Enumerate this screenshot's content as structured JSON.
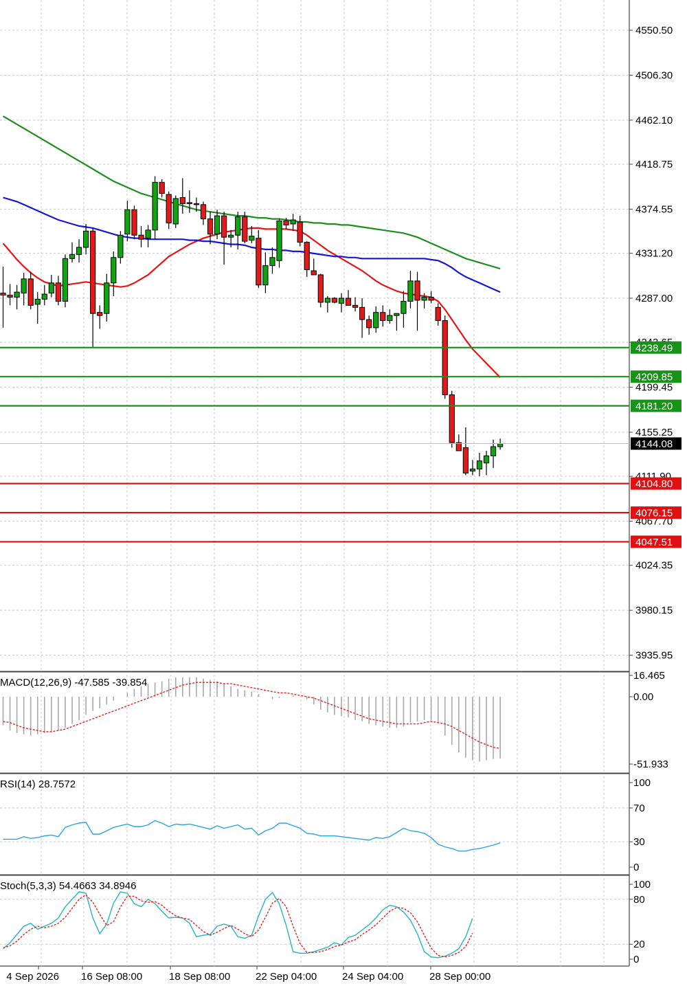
{
  "chart_data": {
    "type": "candlestick",
    "x_tick_labels": [
      "4 Sep 2026",
      "16 Sep 08:00",
      "18 Sep 08:00",
      "22 Sep 04:00",
      "24 Sep 04:00",
      "28 Sep 00:00"
    ],
    "price_panel": {
      "ylim": [
        3914,
        4574
      ],
      "y_tick_labels": [
        "4550.50",
        "4506.30",
        "4462.10",
        "4418.75",
        "4374.55",
        "4331.20",
        "4287.00",
        "4243.65",
        "4199.45",
        "4155.25",
        "4111.90",
        "4067.70",
        "4024.35",
        "3980.15",
        "3935.95"
      ],
      "current_price": 4144.08,
      "current_price_label": "4144.08",
      "resistance_levels": [
        {
          "value": 4238.49,
          "label": "4238.49"
        },
        {
          "value": 4209.85,
          "label": "4209.85"
        },
        {
          "value": 4181.2,
          "label": "4181.20"
        }
      ],
      "support_levels": [
        {
          "value": 4104.8,
          "label": "4104.80"
        },
        {
          "value": 4076.15,
          "label": "4076.15"
        },
        {
          "value": 4047.51,
          "label": "4047.51"
        }
      ],
      "candles": [
        {
          "o": 4292,
          "h": 4318,
          "l": 4258,
          "c": 4290
        },
        {
          "o": 4290,
          "h": 4301,
          "l": 4280,
          "c": 4288
        },
        {
          "o": 4288,
          "h": 4300,
          "l": 4276,
          "c": 4293
        },
        {
          "o": 4292,
          "h": 4312,
          "l": 4280,
          "c": 4306
        },
        {
          "o": 4306,
          "h": 4313,
          "l": 4276,
          "c": 4280
        },
        {
          "o": 4281,
          "h": 4293,
          "l": 4262,
          "c": 4286
        },
        {
          "o": 4286,
          "h": 4300,
          "l": 4280,
          "c": 4291
        },
        {
          "o": 4292,
          "h": 4310,
          "l": 4288,
          "c": 4302
        },
        {
          "o": 4302,
          "h": 4309,
          "l": 4280,
          "c": 4284
        },
        {
          "o": 4284,
          "h": 4330,
          "l": 4278,
          "c": 4326
        },
        {
          "o": 4326,
          "h": 4342,
          "l": 4322,
          "c": 4330
        },
        {
          "o": 4330,
          "h": 4345,
          "l": 4322,
          "c": 4337
        },
        {
          "o": 4337,
          "h": 4360,
          "l": 4330,
          "c": 4353
        },
        {
          "o": 4353,
          "h": 4356,
          "l": 4238,
          "c": 4272
        },
        {
          "o": 4273,
          "h": 4280,
          "l": 4257,
          "c": 4270
        },
        {
          "o": 4272,
          "h": 4311,
          "l": 4264,
          "c": 4302
        },
        {
          "o": 4302,
          "h": 4333,
          "l": 4289,
          "c": 4327
        },
        {
          "o": 4327,
          "h": 4353,
          "l": 4321,
          "c": 4349
        },
        {
          "o": 4350,
          "h": 4383,
          "l": 4343,
          "c": 4374
        },
        {
          "o": 4374,
          "h": 4378,
          "l": 4345,
          "c": 4349
        },
        {
          "o": 4349,
          "h": 4358,
          "l": 4337,
          "c": 4345
        },
        {
          "o": 4346,
          "h": 4359,
          "l": 4337,
          "c": 4354
        },
        {
          "o": 4354,
          "h": 4407,
          "l": 4345,
          "c": 4401
        },
        {
          "o": 4401,
          "h": 4404,
          "l": 4386,
          "c": 4390
        },
        {
          "o": 4389,
          "h": 4392,
          "l": 4355,
          "c": 4361
        },
        {
          "o": 4360,
          "h": 4388,
          "l": 4356,
          "c": 4385
        },
        {
          "o": 4386,
          "h": 4405,
          "l": 4370,
          "c": 4380
        },
        {
          "o": 4380,
          "h": 4393,
          "l": 4371,
          "c": 4381
        },
        {
          "o": 4380,
          "h": 4386,
          "l": 4372,
          "c": 4379
        },
        {
          "o": 4379,
          "h": 4382,
          "l": 4359,
          "c": 4365
        },
        {
          "o": 4365,
          "h": 4372,
          "l": 4340,
          "c": 4350
        },
        {
          "o": 4350,
          "h": 4374,
          "l": 4345,
          "c": 4368
        },
        {
          "o": 4368,
          "h": 4372,
          "l": 4320,
          "c": 4347
        },
        {
          "o": 4347,
          "h": 4354,
          "l": 4337,
          "c": 4349
        },
        {
          "o": 4349,
          "h": 4372,
          "l": 4335,
          "c": 4367
        },
        {
          "o": 4367,
          "h": 4372,
          "l": 4341,
          "c": 4343
        },
        {
          "o": 4344,
          "h": 4358,
          "l": 4341,
          "c": 4348
        },
        {
          "o": 4346,
          "h": 4354,
          "l": 4297,
          "c": 4300
        },
        {
          "o": 4300,
          "h": 4332,
          "l": 4292,
          "c": 4319
        },
        {
          "o": 4319,
          "h": 4337,
          "l": 4311,
          "c": 4327
        },
        {
          "o": 4324,
          "h": 4365,
          "l": 4317,
          "c": 4363
        },
        {
          "o": 4363,
          "h": 4366,
          "l": 4355,
          "c": 4359
        },
        {
          "o": 4360,
          "h": 4370,
          "l": 4353,
          "c": 4364
        },
        {
          "o": 4362,
          "h": 4368,
          "l": 4338,
          "c": 4342
        },
        {
          "o": 4342,
          "h": 4343,
          "l": 4308,
          "c": 4315
        },
        {
          "o": 4314,
          "h": 4326,
          "l": 4311,
          "c": 4310
        },
        {
          "o": 4310,
          "h": 4311,
          "l": 4278,
          "c": 4283
        },
        {
          "o": 4283,
          "h": 4289,
          "l": 4273,
          "c": 4287
        },
        {
          "o": 4287,
          "h": 4288,
          "l": 4282,
          "c": 4283
        },
        {
          "o": 4282,
          "h": 4292,
          "l": 4273,
          "c": 4287
        },
        {
          "o": 4287,
          "h": 4295,
          "l": 4280,
          "c": 4280
        },
        {
          "o": 4280,
          "h": 4288,
          "l": 4274,
          "c": 4278
        },
        {
          "o": 4278,
          "h": 4287,
          "l": 4248,
          "c": 4266
        },
        {
          "o": 4266,
          "h": 4270,
          "l": 4251,
          "c": 4258
        },
        {
          "o": 4258,
          "h": 4279,
          "l": 4253,
          "c": 4273
        },
        {
          "o": 4273,
          "h": 4280,
          "l": 4259,
          "c": 4265
        },
        {
          "o": 4265,
          "h": 4276,
          "l": 4262,
          "c": 4270
        },
        {
          "o": 4270,
          "h": 4272,
          "l": 4255,
          "c": 4272
        },
        {
          "o": 4272,
          "h": 4294,
          "l": 4258,
          "c": 4284
        },
        {
          "o": 4284,
          "h": 4314,
          "l": 4277,
          "c": 4304
        },
        {
          "o": 4304,
          "h": 4313,
          "l": 4255,
          "c": 4285
        },
        {
          "o": 4285,
          "h": 4292,
          "l": 4277,
          "c": 4288
        },
        {
          "o": 4288,
          "h": 4294,
          "l": 4282,
          "c": 4285
        },
        {
          "o": 4278,
          "h": 4282,
          "l": 4260,
          "c": 4265
        },
        {
          "o": 4265,
          "h": 4270,
          "l": 4188,
          "c": 4192
        },
        {
          "o": 4192,
          "h": 4196,
          "l": 4140,
          "c": 4145
        },
        {
          "o": 4145,
          "h": 4153,
          "l": 4137,
          "c": 4137
        },
        {
          "o": 4140,
          "h": 4160,
          "l": 4113,
          "c": 4115
        },
        {
          "o": 4117,
          "h": 4128,
          "l": 4113,
          "c": 4119
        },
        {
          "o": 4119,
          "h": 4135,
          "l": 4112,
          "c": 4127
        },
        {
          "o": 4125,
          "h": 4137,
          "l": 4113,
          "c": 4132
        },
        {
          "o": 4132,
          "h": 4148,
          "l": 4120,
          "c": 4141
        },
        {
          "o": 4141,
          "h": 4149,
          "l": 4138,
          "c": 4144
        }
      ],
      "moving_averages": [
        {
          "color": "#e81313",
          "values": [
            4341,
            4333,
            4325,
            4318,
            4312,
            4307,
            4303,
            4301,
            4299,
            4300,
            4301,
            4302,
            4303,
            4302,
            4301,
            4300,
            4299,
            4298,
            4299,
            4302,
            4306,
            4310,
            4316,
            4322,
            4328,
            4332,
            4336,
            4340,
            4343,
            4346,
            4348,
            4350,
            4352,
            4353,
            4354,
            4355,
            4356,
            4356,
            4355,
            4355,
            4355,
            4355,
            4354,
            4353,
            4349,
            4344,
            4339,
            4334,
            4330,
            4326,
            4322,
            4318,
            4314,
            4309,
            4304,
            4300,
            4297,
            4294,
            4292,
            4291,
            4290,
            4289,
            4288,
            4284,
            4276,
            4266,
            4256,
            4246,
            4237,
            4230,
            4223,
            4216,
            4209
          ]
        },
        {
          "color": "#1515dd",
          "values": [
            4386,
            4384,
            4382,
            4379,
            4376,
            4373,
            4370,
            4367,
            4364,
            4362,
            4360,
            4358,
            4357,
            4356,
            4354,
            4352,
            4350,
            4348,
            4347,
            4346,
            4346,
            4345,
            4345,
            4345,
            4345,
            4345,
            4345,
            4344,
            4344,
            4343,
            4343,
            4342,
            4341,
            4340,
            4340,
            4339,
            4337,
            4336,
            4335,
            4335,
            4334,
            4334,
            4333,
            4333,
            4332,
            4331,
            4330,
            4329,
            4328,
            4328,
            4327,
            4327,
            4326,
            4326,
            4326,
            4326,
            4326,
            4326,
            4326,
            4326,
            4326,
            4326,
            4325,
            4324,
            4321,
            4317,
            4312,
            4308,
            4305,
            4302,
            4299,
            4296,
            4293
          ]
        },
        {
          "color": "#1d8e1d",
          "values": [
            4466,
            4462,
            4458,
            4454,
            4450,
            4446,
            4442,
            4438,
            4434,
            4430,
            4426,
            4422,
            4418,
            4414,
            4410,
            4406,
            4402,
            4399,
            4396,
            4393,
            4390,
            4388,
            4386,
            4384,
            4382,
            4380,
            4378,
            4376,
            4374,
            4373,
            4372,
            4371,
            4370,
            4369,
            4368,
            4368,
            4367,
            4366,
            4366,
            4365,
            4365,
            4364,
            4363,
            4362,
            4362,
            4361,
            4361,
            4360,
            4360,
            4359,
            4359,
            4358,
            4357,
            4356,
            4355,
            4354,
            4353,
            4352,
            4351,
            4349,
            4347,
            4344,
            4341,
            4338,
            4335,
            4332,
            4329,
            4326,
            4324,
            4322,
            4320,
            4318,
            4316
          ]
        }
      ]
    },
    "macd_panel": {
      "label": "MACD(12,26,9) -47.585 -39.854",
      "y_tick_labels": [
        "16.465",
        "0.00",
        "-51.933"
      ],
      "ylim": [
        -52,
        16.5
      ],
      "histogram": [
        -22,
        -26,
        -28,
        -29,
        -30,
        -29,
        -28,
        -27,
        -26,
        -24,
        -21,
        -18,
        -14,
        -11,
        -9,
        -6,
        -3,
        0,
        3,
        6,
        8,
        10,
        11,
        12,
        14,
        15,
        15,
        15,
        15,
        14,
        13,
        12,
        10,
        8,
        6,
        5,
        4,
        2,
        0,
        -2,
        -1,
        0,
        1,
        0,
        -2,
        -6,
        -10,
        -12,
        -14,
        -15,
        -16,
        -18,
        -19,
        -21,
        -22,
        -23,
        -24,
        -24,
        -23,
        -20,
        -19,
        -18,
        -18,
        -20,
        -30,
        -37,
        -43,
        -47,
        -49,
        -50,
        -49,
        -48,
        -47.585
      ],
      "signal": [
        -19,
        -20,
        -22,
        -24,
        -25,
        -26,
        -27,
        -27,
        -26,
        -25,
        -23,
        -21,
        -19,
        -17,
        -15,
        -13,
        -11,
        -9,
        -7,
        -5,
        -3,
        -1,
        1,
        3,
        5,
        7,
        9,
        10,
        11,
        11,
        11,
        11,
        10,
        10,
        9,
        8,
        7,
        6,
        5,
        4,
        3,
        3,
        2,
        1,
        0,
        -1,
        -3,
        -5,
        -7,
        -9,
        -11,
        -13,
        -15,
        -17,
        -18,
        -19,
        -20,
        -21,
        -21,
        -21,
        -21,
        -20,
        -19,
        -20,
        -21,
        -23,
        -26,
        -29,
        -32,
        -35,
        -37,
        -39,
        -39.854
      ]
    },
    "rsi_panel": {
      "label": "RSI(14) 28.7572",
      "y_tick_labels": [
        "100",
        "70",
        "30",
        "0"
      ],
      "ylim": [
        0,
        100
      ],
      "values": [
        33,
        33,
        33,
        36,
        34,
        35,
        37,
        38,
        36,
        47,
        50,
        52,
        53,
        39,
        39,
        43,
        47,
        49,
        51,
        48,
        48,
        50,
        55,
        52,
        48,
        51,
        50,
        51,
        49,
        47,
        45,
        49,
        46,
        48,
        50,
        45,
        46,
        38,
        43,
        46,
        52,
        52,
        49,
        46,
        40,
        39,
        37,
        37,
        37,
        36,
        35,
        34,
        33,
        32,
        35,
        34,
        36,
        41,
        46,
        43,
        42,
        40,
        35,
        27,
        24,
        22,
        19,
        19,
        21,
        22,
        24,
        26,
        28.7572
      ]
    },
    "stoch_panel": {
      "label": "Stoch(5,3,3) 54.4663 34.8946",
      "y_tick_labels": [
        "100",
        "80",
        "20",
        "0"
      ],
      "ylim": [
        0,
        100
      ],
      "k": [
        14,
        22,
        33,
        44,
        48,
        40,
        44,
        48,
        55,
        70,
        80,
        90,
        88,
        55,
        34,
        47,
        75,
        90,
        88,
        74,
        70,
        80,
        74,
        64,
        55,
        56,
        55,
        48,
        30,
        32,
        33,
        44,
        47,
        44,
        30,
        28,
        32,
        58,
        80,
        89,
        74,
        45,
        10,
        8,
        8,
        10,
        13,
        16,
        22,
        19,
        29,
        32,
        39,
        46,
        55,
        66,
        72,
        70,
        63,
        52,
        34,
        10,
        3,
        2,
        4,
        8,
        14,
        30,
        54.4663
      ],
      "d": [
        15,
        18,
        24,
        33,
        40,
        44,
        42,
        44,
        48,
        56,
        68,
        80,
        86,
        76,
        60,
        45,
        50,
        70,
        84,
        84,
        78,
        76,
        77,
        72,
        64,
        58,
        55,
        53,
        45,
        37,
        32,
        36,
        41,
        45,
        40,
        34,
        30,
        39,
        56,
        75,
        81,
        70,
        44,
        21,
        9,
        9,
        10,
        13,
        17,
        19,
        23,
        26,
        33,
        39,
        46,
        55,
        64,
        69,
        68,
        62,
        50,
        32,
        15,
        5,
        3,
        5,
        9,
        17,
        34.8946
      ]
    }
  }
}
